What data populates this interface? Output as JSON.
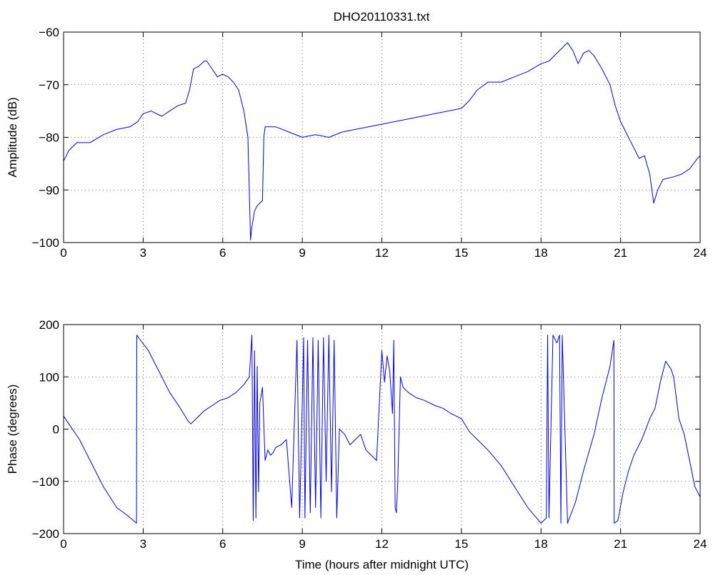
{
  "figure": {
    "title": "DHO20110331.txt"
  },
  "chart_data": [
    {
      "type": "line",
      "title": "DHO20110331.txt",
      "xlabel": "",
      "ylabel": "Amplitude (dB)",
      "xlim": [
        0,
        24
      ],
      "ylim": [
        -100,
        -60
      ],
      "xticks": [
        0,
        3,
        6,
        9,
        12,
        15,
        18,
        21,
        24
      ],
      "yticks": [
        -100,
        -90,
        -80,
        -70,
        -60
      ],
      "grid": true,
      "series": [
        {
          "color": "#0000ff",
          "x": [
            0,
            0.2,
            0.5,
            1,
            1.5,
            2,
            2.5,
            2.8,
            3,
            3.3,
            3.7,
            4,
            4.3,
            4.6,
            4.75,
            4.9,
            5.1,
            5.3,
            5.4,
            5.6,
            5.8,
            6,
            6.2,
            6.4,
            6.6,
            6.8,
            6.95,
            7.0,
            7.05,
            7.1,
            7.2,
            7.3,
            7.5,
            7.55,
            7.6,
            8,
            8.5,
            9,
            9.5,
            10,
            10.5,
            11,
            11.5,
            12,
            12.5,
            13,
            13.5,
            14,
            14.5,
            15,
            15.3,
            15.6,
            16,
            16.5,
            17,
            17.5,
            18,
            18.3,
            18.6,
            18.8,
            19,
            19.2,
            19.4,
            19.6,
            19.8,
            20,
            20.3,
            20.6,
            20.8,
            21,
            21.2,
            21.5,
            21.7,
            21.9,
            22.1,
            22.25,
            22.4,
            22.6,
            23,
            23.3,
            23.6,
            23.9,
            24
          ],
          "y": [
            -84.5,
            -82.5,
            -81,
            -81,
            -79.5,
            -78.5,
            -78,
            -77,
            -75.5,
            -75,
            -76,
            -75,
            -74,
            -73.5,
            -71,
            -67,
            -66.5,
            -65.5,
            -65.5,
            -67,
            -68.5,
            -68,
            -68.5,
            -69.5,
            -71,
            -75,
            -80,
            -90,
            -99.5,
            -97,
            -94,
            -93,
            -92,
            -80,
            -78,
            -78,
            -79,
            -80,
            -79.5,
            -80,
            -79,
            -78.5,
            -78,
            -77.5,
            -77,
            -76.5,
            -76,
            -75.5,
            -75,
            -74.5,
            -73,
            -71,
            -69.5,
            -69.5,
            -68.5,
            -67.5,
            -66,
            -65.5,
            -64,
            -63,
            -62,
            -63.5,
            -66,
            -64,
            -63.5,
            -64.5,
            -67,
            -70,
            -74,
            -77,
            -79,
            -82,
            -84,
            -83.5,
            -87,
            -92.5,
            -90,
            -88,
            -87.5,
            -87,
            -86,
            -84,
            -83.5
          ]
        }
      ]
    },
    {
      "type": "line",
      "title": "",
      "xlabel": "Time (hours after midnight UTC)",
      "ylabel": "Phase (degrees)",
      "xlim": [
        0,
        24
      ],
      "ylim": [
        -200,
        200
      ],
      "xticks": [
        0,
        3,
        6,
        9,
        12,
        15,
        18,
        21,
        24
      ],
      "yticks": [
        -200,
        -100,
        0,
        100,
        200
      ],
      "grid": true,
      "series": [
        {
          "color": "#0000ff",
          "x": [
            0,
            0.2,
            0.6,
            1,
            1.5,
            2,
            2.4,
            2.75,
            2.76,
            2.9,
            3.2,
            3.6,
            4,
            4.4,
            4.7,
            4.8,
            5,
            5.3,
            5.6,
            5.9,
            6.2,
            6.5,
            6.8,
            7.0,
            7.1,
            7.15,
            7.2,
            7.25,
            7.3,
            7.35,
            7.4,
            7.5,
            7.6,
            7.7,
            7.8,
            7.9,
            8.0,
            8.2,
            8.4,
            8.6,
            8.8,
            8.9,
            9.0,
            9.05,
            9.1,
            9.2,
            9.3,
            9.4,
            9.5,
            9.6,
            9.7,
            9.8,
            9.9,
            10.0,
            10.1,
            10.2,
            10.3,
            10.4,
            10.6,
            10.8,
            11.0,
            11.2,
            11.4,
            11.6,
            11.8,
            12.0,
            12.1,
            12.2,
            12.3,
            12.4,
            12.45,
            12.5,
            12.55,
            12.6,
            12.7,
            12.8,
            13.0,
            13.3,
            13.6,
            14.0,
            14.3,
            14.6,
            15.0,
            15.3,
            15.6,
            16.0,
            16.5,
            17.0,
            17.5,
            18.0,
            18.2,
            18.25,
            18.3,
            18.45,
            18.6,
            18.7,
            18.75,
            18.8,
            19.0,
            19.3,
            19.6,
            20.0,
            20.3,
            20.6,
            20.75,
            20.76,
            20.9,
            21.1,
            21.3,
            21.5,
            21.8,
            22.1,
            22.3,
            22.5,
            22.7,
            22.9,
            23.0,
            23.1,
            23.2,
            23.4,
            23.6,
            23.8,
            24.0
          ],
          "y": [
            25,
            10,
            -20,
            -60,
            -110,
            -150,
            -165,
            -180,
            180,
            170,
            150,
            110,
            70,
            40,
            15,
            10,
            20,
            35,
            45,
            55,
            60,
            70,
            85,
            100,
            180,
            -175,
            150,
            -170,
            120,
            -120,
            50,
            80,
            -60,
            -40,
            -50,
            -45,
            -35,
            -30,
            -20,
            -150,
            170,
            -170,
            50,
            175,
            -170,
            170,
            -160,
            175,
            -150,
            170,
            -170,
            175,
            -100,
            180,
            -120,
            170,
            -170,
            0,
            -10,
            -30,
            -20,
            -10,
            -40,
            -50,
            -60,
            150,
            90,
            140,
            110,
            30,
            170,
            -150,
            -160,
            -100,
            100,
            80,
            70,
            60,
            55,
            45,
            40,
            30,
            20,
            -5,
            -20,
            -40,
            -70,
            -110,
            -150,
            -180,
            -170,
            180,
            -170,
            180,
            165,
            180,
            -180,
            180,
            -180,
            -140,
            -80,
            -10,
            60,
            120,
            170,
            -180,
            -175,
            -120,
            -80,
            -50,
            -20,
            20,
            40,
            90,
            130,
            115,
            100,
            60,
            20,
            -10,
            -60,
            -110,
            -130
          ]
        }
      ]
    }
  ]
}
